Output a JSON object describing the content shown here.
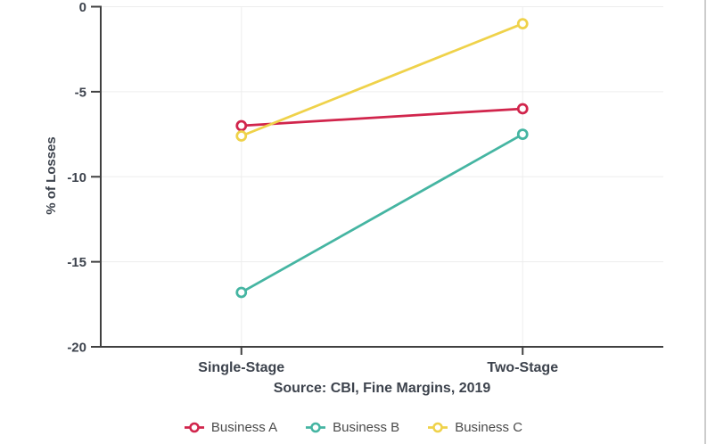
{
  "chart_data": {
    "type": "line",
    "subtype": "slopegraph",
    "categories": [
      "Single-Stage",
      "Two-Stage"
    ],
    "series": [
      {
        "name": "Business A",
        "color": "#d1254c",
        "values": [
          -7,
          -6
        ]
      },
      {
        "name": "Business B",
        "color": "#45b5a2",
        "values": [
          -16.8,
          -7.5
        ]
      },
      {
        "name": "Business C",
        "color": "#efd24a",
        "values": [
          -7.6,
          -1
        ]
      }
    ],
    "title": "",
    "xlabel": "",
    "ylabel": "% of Losses",
    "ylim": [
      -20,
      0
    ],
    "yticks": [
      0,
      -5,
      -10,
      -15,
      -20
    ],
    "grid": true,
    "legend_position": "bottom",
    "marker_style": "open-circle",
    "source_note": "Source: CBI, Fine Margins, 2019"
  },
  "colors": {
    "axis": "#404040",
    "grid": "#ededed",
    "text": "#3d434d",
    "legend_text": "#4b4b4b",
    "window_border": "#cccccc",
    "background": "#ffffff"
  }
}
